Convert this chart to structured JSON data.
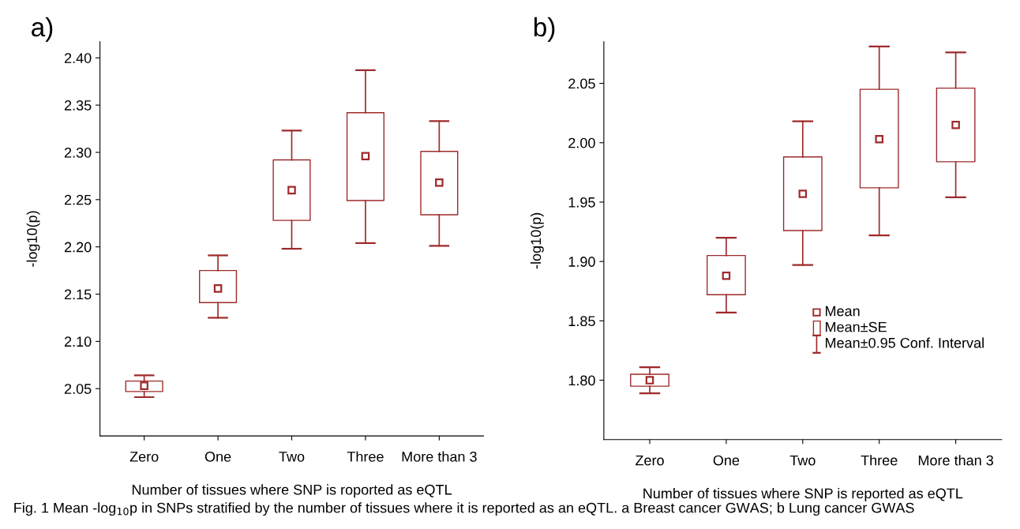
{
  "chart_data": [
    {
      "type": "box",
      "title": "a)",
      "xlabel": "Number of tissues where SNP is roported as eQTL",
      "ylabel": "-log10(p)",
      "categories": [
        "Zero",
        "One",
        "Two",
        "Three",
        "More than 3"
      ],
      "series": [
        {
          "color": "#9e2a2b",
          "boxes": [
            {
              "low": 2.041,
              "q1": 2.047,
              "q3": 2.058,
              "high": 2.064,
              "mean": 2.053
            },
            {
              "low": 2.125,
              "q1": 2.141,
              "q3": 2.175,
              "high": 2.191,
              "mean": 2.156
            },
            {
              "low": 2.198,
              "q1": 2.228,
              "q3": 2.292,
              "high": 2.323,
              "mean": 2.26
            },
            {
              "low": 2.204,
              "q1": 2.249,
              "q3": 2.342,
              "high": 2.387,
              "mean": 2.296
            },
            {
              "low": 2.201,
              "q1": 2.234,
              "q3": 2.301,
              "high": 2.333,
              "mean": 2.268
            }
          ]
        }
      ],
      "ylim": [
        2.0,
        2.417
      ],
      "yticks": [
        {
          "value": 2.05,
          "label": "2.05"
        },
        {
          "value": 2.1,
          "label": "2.10"
        },
        {
          "value": 2.15,
          "label": "2.15"
        },
        {
          "value": 2.2,
          "label": "2.20"
        },
        {
          "value": 2.25,
          "label": "2.25"
        },
        {
          "value": 2.3,
          "label": "2.30"
        },
        {
          "value": 2.35,
          "label": "2.35"
        },
        {
          "value": 2.4,
          "label": "2.40"
        }
      ],
      "grid": false,
      "legend": false,
      "annotations": [
        "Fig. 1 Mean -log$_{10}$p in SNPs stratified by the number of tissues where it is reported as an eQTL. a Breast cancer GWAS; b Lung cancer GWAS"
      ]
    },
    {
      "type": "box",
      "title": "b)",
      "xlabel": "Number of tissues where SNP is reported as eQTL",
      "ylabel": "-log10(p)",
      "categories": [
        "Zero",
        "One",
        "Two",
        "Three",
        "More than 3"
      ],
      "series": [
        {
          "color": "#9e2a2b",
          "boxes": [
            {
              "low": 1.789,
              "q1": 1.795,
              "q3": 1.805,
              "high": 1.811,
              "mean": 1.8
            },
            {
              "low": 1.857,
              "q1": 1.872,
              "q3": 1.905,
              "high": 1.92,
              "mean": 1.888
            },
            {
              "low": 1.897,
              "q1": 1.926,
              "q3": 1.988,
              "high": 2.018,
              "mean": 1.957
            },
            {
              "low": 1.922,
              "q1": 1.962,
              "q3": 2.045,
              "high": 2.081,
              "mean": 2.003
            },
            {
              "low": 1.954,
              "q1": 1.984,
              "q3": 2.046,
              "high": 2.076,
              "mean": 2.015
            }
          ]
        }
      ],
      "ylim": [
        1.75,
        2.085
      ],
      "yticks": [
        {
          "value": 1.8,
          "label": "1.80"
        },
        {
          "value": 1.85,
          "label": "1.85"
        },
        {
          "value": 1.9,
          "label": "1.90"
        },
        {
          "value": 1.95,
          "label": "1.95"
        },
        {
          "value": 2.0,
          "label": "2.00"
        },
        {
          "value": 2.05,
          "label": "2.05"
        }
      ],
      "grid": false,
      "annotations": [
        "Mean",
        "Mean±SE",
        "Mean±0.95 Conf. Interval"
      ]
    }
  ]
}
